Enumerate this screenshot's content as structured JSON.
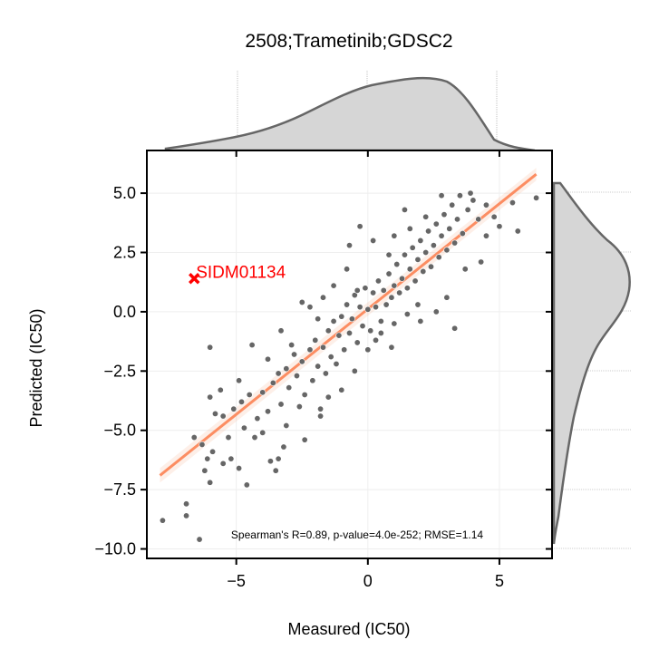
{
  "chart_data": {
    "type": "scatter",
    "title": "2508;Trametinib;GDSC2",
    "xlabel": "Measured (IC50)",
    "ylabel": "Predicted (IC50)",
    "xlim": [
      -8.4,
      7.0
    ],
    "ylim": [
      -10.4,
      6.8
    ],
    "xticks": [
      -5,
      0,
      5
    ],
    "xtick_labels": [
      "−5",
      "0",
      "5"
    ],
    "yticks": [
      5.0,
      2.5,
      0.0,
      -2.5,
      -5.0,
      -7.5,
      -10.0
    ],
    "ytick_labels": [
      "5.0",
      "2.5",
      "0.0",
      "−2.5",
      "−5.0",
      "−7.5",
      "−10.0"
    ],
    "grid": true,
    "annotation": "Spearman's R=0.89, p-value=4.0e-252; RMSE=1.14",
    "highlight": {
      "label": "SIDM01134",
      "x": -6.6,
      "y": 1.4
    },
    "regression_line": {
      "x": [
        -7.9,
        6.4
      ],
      "y": [
        -6.9,
        5.8
      ]
    },
    "points": [
      [
        -7.8,
        -8.8
      ],
      [
        -6.9,
        -8.1
      ],
      [
        -6.9,
        -8.6
      ],
      [
        -6.4,
        -9.6
      ],
      [
        -6.6,
        -5.3
      ],
      [
        -6.3,
        -5.6
      ],
      [
        -6.2,
        -6.7
      ],
      [
        -6.0,
        -7.2
      ],
      [
        -6.1,
        -6.2
      ],
      [
        -5.9,
        -5.9
      ],
      [
        -5.5,
        -6.4
      ],
      [
        -5.2,
        -6.2
      ],
      [
        -4.9,
        -6.6
      ],
      [
        -4.6,
        -7.3
      ],
      [
        -4.3,
        -5.3
      ],
      [
        -4.0,
        -5.1
      ],
      [
        -3.7,
        -6.3
      ],
      [
        -3.4,
        -6.2
      ],
      [
        -3.2,
        -5.7
      ],
      [
        -6.0,
        -1.5
      ],
      [
        -6.0,
        -3.6
      ],
      [
        -5.8,
        -4.3
      ],
      [
        -5.5,
        -4.4
      ],
      [
        -5.1,
        -4.1
      ],
      [
        -4.8,
        -3.8
      ],
      [
        -4.5,
        -3.5
      ],
      [
        -4.2,
        -4.5
      ],
      [
        -4.0,
        -3.4
      ],
      [
        -3.8,
        -4.2
      ],
      [
        -3.6,
        -3.0
      ],
      [
        -3.4,
        -2.6
      ],
      [
        -3.3,
        -3.9
      ],
      [
        -3.1,
        -2.4
      ],
      [
        -3.0,
        -3.2
      ],
      [
        -2.8,
        -1.8
      ],
      [
        -2.7,
        -2.7
      ],
      [
        -2.5,
        -2.1
      ],
      [
        -2.4,
        -3.5
      ],
      [
        -2.2,
        -1.6
      ],
      [
        -2.1,
        -2.9
      ],
      [
        -2.0,
        -1.2
      ],
      [
        -1.9,
        -2.3
      ],
      [
        -1.8,
        -4.1
      ],
      [
        -1.7,
        -1.5
      ],
      [
        -1.6,
        -2.6
      ],
      [
        -1.5,
        -0.8
      ],
      [
        -1.4,
        -1.9
      ],
      [
        -1.3,
        -0.4
      ],
      [
        -1.2,
        -2.2
      ],
      [
        -1.1,
        -1.0
      ],
      [
        -1.0,
        -0.2
      ],
      [
        -0.9,
        -1.6
      ],
      [
        -0.8,
        0.3
      ],
      [
        -0.7,
        -0.9
      ],
      [
        -0.6,
        -0.3
      ],
      [
        -0.5,
        0.7
      ],
      [
        -0.4,
        -1.3
      ],
      [
        -0.3,
        0.2
      ],
      [
        -0.2,
        -0.6
      ],
      [
        -0.1,
        1.0
      ],
      [
        0.0,
        0.1
      ],
      [
        0.1,
        -0.8
      ],
      [
        0.2,
        0.8
      ],
      [
        0.3,
        0.2
      ],
      [
        0.4,
        1.3
      ],
      [
        0.5,
        -0.4
      ],
      [
        0.6,
        0.9
      ],
      [
        0.7,
        0.3
      ],
      [
        0.8,
        1.6
      ],
      [
        0.9,
        0.6
      ],
      [
        1.0,
        1.1
      ],
      [
        1.1,
        2.0
      ],
      [
        1.2,
        0.8
      ],
      [
        1.3,
        1.4
      ],
      [
        1.4,
        2.4
      ],
      [
        1.5,
        1.0
      ],
      [
        1.6,
        1.8
      ],
      [
        1.7,
        2.7
      ],
      [
        1.8,
        1.3
      ],
      [
        1.9,
        2.2
      ],
      [
        2.0,
        3.0
      ],
      [
        2.1,
        1.7
      ],
      [
        2.2,
        2.5
      ],
      [
        2.3,
        3.4
      ],
      [
        2.4,
        1.9
      ],
      [
        2.5,
        2.8
      ],
      [
        2.6,
        3.7
      ],
      [
        2.7,
        2.3
      ],
      [
        2.8,
        3.2
      ],
      [
        2.9,
        4.1
      ],
      [
        3.0,
        2.6
      ],
      [
        3.1,
        3.5
      ],
      [
        3.2,
        4.5
      ],
      [
        3.3,
        2.9
      ],
      [
        3.4,
        3.9
      ],
      [
        3.5,
        4.9
      ],
      [
        3.6,
        3.3
      ],
      [
        3.8,
        4.3
      ],
      [
        4.0,
        4.7
      ],
      [
        4.2,
        3.9
      ],
      [
        4.5,
        4.5
      ],
      [
        4.8,
        4.0
      ],
      [
        5.0,
        3.6
      ],
      [
        5.5,
        4.6
      ],
      [
        5.7,
        3.4
      ],
      [
        6.4,
        4.8
      ],
      [
        -1.7,
        0.6
      ],
      [
        -2.5,
        0.4
      ],
      [
        -0.7,
        2.8
      ],
      [
        0.2,
        3.0
      ],
      [
        1.0,
        3.2
      ],
      [
        3.0,
        0.6
      ],
      [
        3.3,
        -0.7
      ],
      [
        2.6,
        0.0
      ],
      [
        0.0,
        -1.6
      ],
      [
        -0.5,
        -2.5
      ],
      [
        -1.0,
        -3.3
      ],
      [
        -1.8,
        -4.4
      ],
      [
        -2.4,
        -5.4
      ],
      [
        -3.5,
        -6.7
      ],
      [
        -1.5,
        -3.6
      ],
      [
        1.0,
        -0.5
      ],
      [
        0.5,
        -0.9
      ],
      [
        -0.4,
        0.9
      ],
      [
        0.8,
        2.4
      ],
      [
        1.6,
        3.5
      ],
      [
        2.2,
        4.0
      ],
      [
        -2.9,
        -1.4
      ],
      [
        -3.8,
        -2.0
      ],
      [
        -2.2,
        0.2
      ],
      [
        4.3,
        2.1
      ],
      [
        3.7,
        1.8
      ],
      [
        -0.3,
        3.6
      ],
      [
        1.9,
        0.3
      ],
      [
        -4.4,
        -1.4
      ],
      [
        -5.3,
        -5.3
      ],
      [
        -4.7,
        -4.9
      ],
      [
        -3.1,
        -4.8
      ],
      [
        -2.6,
        -4.0
      ],
      [
        1.4,
        4.3
      ],
      [
        2.8,
        4.9
      ],
      [
        3.9,
        5.0
      ],
      [
        4.5,
        3.2
      ],
      [
        2.0,
        -0.4
      ],
      [
        -0.8,
        1.8
      ],
      [
        -1.3,
        1.1
      ],
      [
        0.3,
        -1.2
      ],
      [
        -1.9,
        -0.3
      ],
      [
        0.9,
        -1.5
      ],
      [
        1.5,
        -0.1
      ],
      [
        -3.3,
        -0.8
      ],
      [
        -4.9,
        -2.9
      ],
      [
        -5.6,
        -3.3
      ]
    ]
  }
}
